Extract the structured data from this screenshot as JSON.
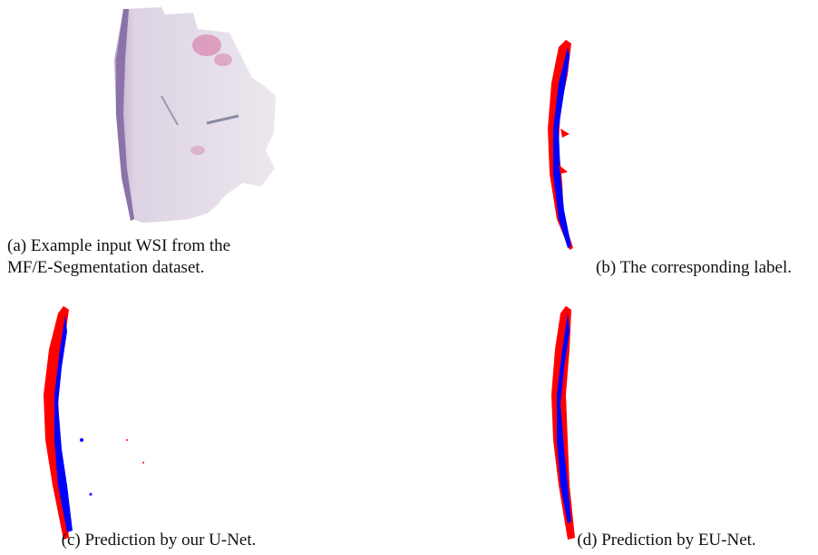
{
  "subfigures": [
    {
      "label": "(a)",
      "caption_lines": [
        "Example input WSI from the",
        "MF/E-Segmentation dataset."
      ]
    },
    {
      "label": "(b)",
      "caption_lines": [
        "The corresponding label."
      ]
    },
    {
      "label": "(c)",
      "caption_lines": [
        "Prediction by our U-Net."
      ]
    },
    {
      "label": "(d)",
      "caption_lines": [
        "Prediction by EU-Net."
      ]
    }
  ]
}
